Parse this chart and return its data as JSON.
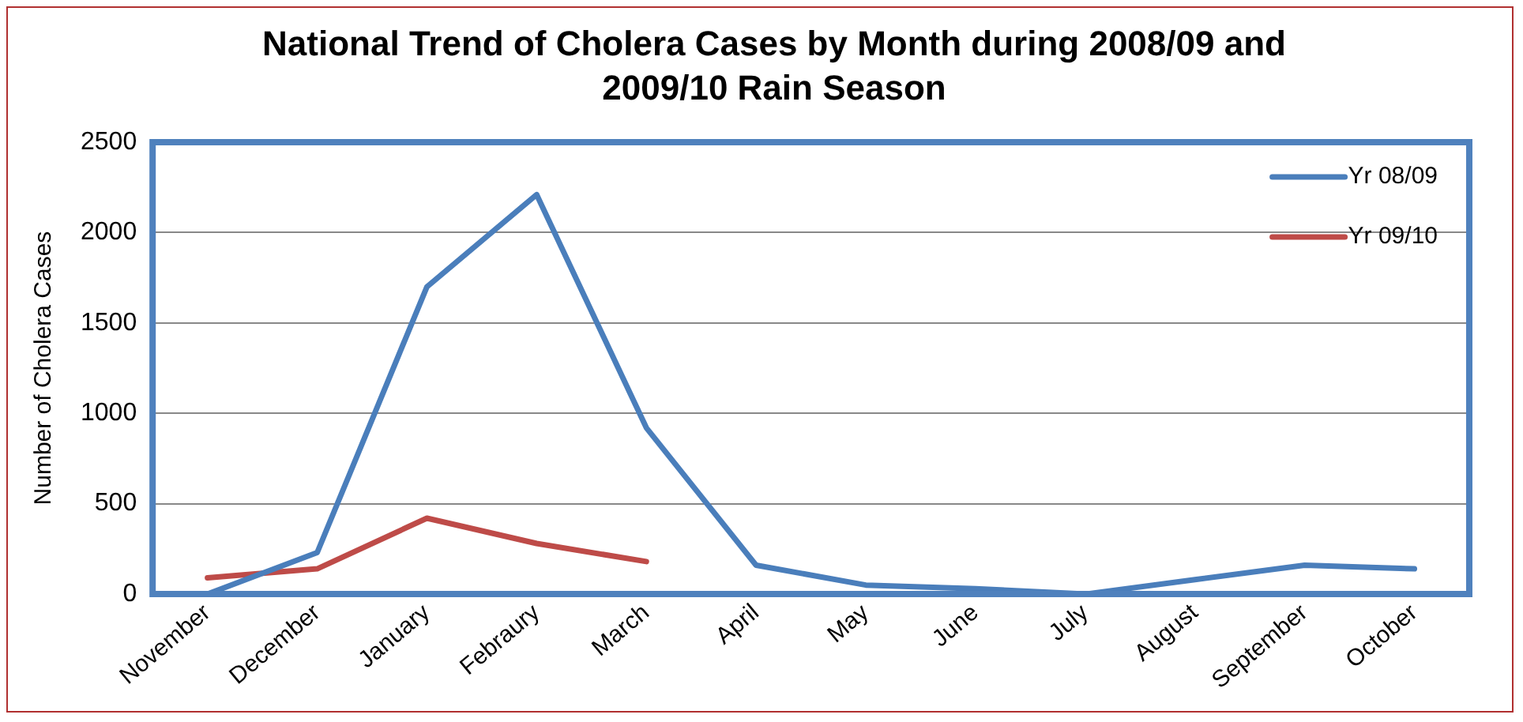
{
  "chart_data": {
    "type": "line",
    "title": "National Trend of Cholera Cases by Month during 2008/09 and 2009/10 Rain Season",
    "ylabel": "Number of Cholera Cases",
    "categories": [
      "November",
      "December",
      "January",
      "Febraury",
      "March",
      "April",
      "May",
      "June",
      "July",
      "August",
      "September",
      "October"
    ],
    "series": [
      {
        "name": "Yr 08/09",
        "color": "#4a7ebb",
        "values": [
          0,
          230,
          1700,
          2210,
          920,
          160,
          50,
          30,
          0,
          80,
          160,
          140
        ]
      },
      {
        "name": "Yr 09/10",
        "color": "#be4b48",
        "values": [
          90,
          140,
          420,
          280,
          180,
          null,
          null,
          null,
          null,
          null,
          null,
          null
        ]
      }
    ],
    "ylim": [
      0,
      2500
    ],
    "yticks": [
      0,
      500,
      1000,
      1500,
      2000,
      2500
    ],
    "grid": "y",
    "legend": "top right",
    "marker": "none",
    "line_style": "solid"
  }
}
